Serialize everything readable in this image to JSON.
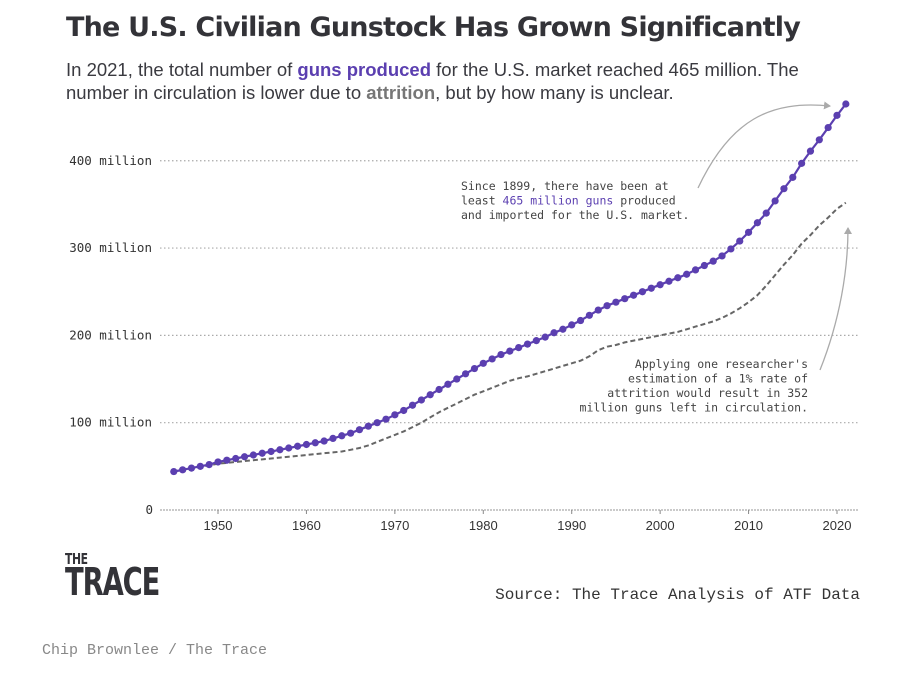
{
  "header": {
    "title": "The U.S. Civilian Gunstock Has Grown Significantly",
    "subtitle_parts": [
      {
        "text": "In 2021, the total number of ",
        "style": "plain"
      },
      {
        "text": "guns produced",
        "style": "purple"
      },
      {
        "text": " for the U.S. market reached 465 million. The number in circulation is lower due to ",
        "style": "plain"
      },
      {
        "text": "attrition",
        "style": "gray"
      },
      {
        "text": ", but by how many is unclear.",
        "style": "plain"
      }
    ]
  },
  "colors": {
    "produced": "#5b3fb0",
    "attrition": "#666666",
    "grid": "#aaaaaa",
    "annotation_text": "#444444",
    "arrow": "#aaaaaa"
  },
  "chart_data": {
    "type": "line",
    "title": "The U.S. Civilian Gunstock Has Grown Significantly",
    "xlabel": "",
    "ylabel": "",
    "xlim": [
      1943,
      2023
    ],
    "ylim": [
      0,
      465
    ],
    "x_ticks": [
      1950,
      1960,
      1970,
      1980,
      1990,
      2000,
      2010,
      2020
    ],
    "y_ticks": [
      {
        "value": 0,
        "label": "0"
      },
      {
        "value": 100,
        "label": "100 million"
      },
      {
        "value": 200,
        "label": "200 million"
      },
      {
        "value": 300,
        "label": "300 million"
      },
      {
        "value": 400,
        "label": "400 million"
      }
    ],
    "grid": "horizontal dotted",
    "units": "millions of guns",
    "x": [
      1945,
      1946,
      1947,
      1948,
      1949,
      1950,
      1951,
      1952,
      1953,
      1954,
      1955,
      1956,
      1957,
      1958,
      1959,
      1960,
      1961,
      1962,
      1963,
      1964,
      1965,
      1966,
      1967,
      1968,
      1969,
      1970,
      1971,
      1972,
      1973,
      1974,
      1975,
      1976,
      1977,
      1978,
      1979,
      1980,
      1981,
      1982,
      1983,
      1984,
      1985,
      1986,
      1987,
      1988,
      1989,
      1990,
      1991,
      1992,
      1993,
      1994,
      1995,
      1996,
      1997,
      1998,
      1999,
      2000,
      2001,
      2002,
      2003,
      2004,
      2005,
      2006,
      2007,
      2008,
      2009,
      2010,
      2011,
      2012,
      2013,
      2014,
      2015,
      2016,
      2017,
      2018,
      2019,
      2020,
      2021
    ],
    "series": [
      {
        "name": "Guns produced",
        "style": "line-with-dots",
        "values": [
          44,
          46,
          48,
          50,
          52,
          55,
          57,
          59,
          61,
          63,
          65,
          67,
          69,
          71,
          73,
          75,
          77,
          79,
          82,
          85,
          88,
          92,
          96,
          100,
          104,
          109,
          114,
          120,
          126,
          132,
          138,
          144,
          150,
          156,
          162,
          168,
          173,
          178,
          182,
          186,
          190,
          194,
          198,
          203,
          207,
          212,
          217,
          223,
          229,
          234,
          238,
          242,
          246,
          250,
          254,
          258,
          262,
          266,
          270,
          275,
          280,
          285,
          291,
          299,
          308,
          318,
          329,
          340,
          354,
          368,
          381,
          397,
          411,
          424,
          438,
          452,
          465
        ]
      },
      {
        "name": "Estimated guns in circulation (1% attrition)",
        "style": "dashed",
        "values": [
          44,
          46,
          48,
          50,
          51,
          53,
          54,
          55,
          56,
          57,
          58,
          59,
          60,
          61,
          62,
          63,
          64,
          65,
          66,
          67,
          69,
          71,
          74,
          78,
          82,
          86,
          90,
          95,
          100,
          106,
          112,
          117,
          122,
          127,
          132,
          136,
          140,
          144,
          148,
          151,
          153,
          156,
          159,
          162,
          165,
          168,
          171,
          176,
          183,
          187,
          189,
          192,
          194,
          196,
          198,
          200,
          202,
          204,
          207,
          210,
          213,
          216,
          220,
          225,
          231,
          238,
          246,
          257,
          269,
          281,
          292,
          305,
          315,
          326,
          335,
          345,
          352
        ]
      }
    ],
    "annotations": [
      {
        "id": "produced-note",
        "lines": [
          [
            {
              "text": "Since 1899, there have been at",
              "style": "plain"
            }
          ],
          [
            {
              "text": "least ",
              "style": "plain"
            },
            {
              "text": "465 million guns",
              "style": "purple"
            },
            {
              "text": " produced",
              "style": "plain"
            }
          ],
          [
            {
              "text": "and imported for the U.S. market.",
              "style": "plain"
            }
          ]
        ],
        "points_to": {
          "series": "Guns produced",
          "x": 2021
        }
      },
      {
        "id": "attrition-note",
        "lines": [
          [
            {
              "text": "Applying one researcher's",
              "style": "plain"
            }
          ],
          [
            {
              "text": "estimation of a 1% rate of",
              "style": "plain"
            }
          ],
          [
            {
              "text": "attrition would result in 352",
              "style": "plain"
            }
          ],
          [
            {
              "text": "million guns left in circulation.",
              "style": "plain"
            }
          ]
        ],
        "points_to": {
          "series": "Estimated guns in circulation (1% attrition)",
          "x": 2021
        }
      }
    ]
  },
  "footer": {
    "logo_the": "THE",
    "logo_trace": "TRACE",
    "source": "Source: The Trace Analysis of ATF Data",
    "credit": "Chip Brownlee / The Trace"
  }
}
